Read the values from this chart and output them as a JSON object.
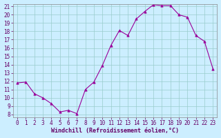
{
  "x": [
    0,
    1,
    2,
    3,
    4,
    5,
    6,
    7,
    8,
    9,
    10,
    11,
    12,
    13,
    14,
    15,
    16,
    17,
    18,
    19,
    20,
    21,
    22,
    23
  ],
  "y": [
    11.8,
    11.9,
    10.5,
    10.0,
    9.3,
    8.3,
    8.5,
    8.1,
    11.0,
    11.9,
    13.9,
    16.3,
    18.1,
    17.5,
    19.5,
    20.4,
    21.2,
    21.1,
    21.1,
    20.0,
    19.7,
    17.5,
    16.8,
    13.5
  ],
  "line_color": "#990099",
  "marker": "^",
  "marker_size": 2.5,
  "bg_color": "#cceeff",
  "grid_color": "#99cccc",
  "xlabel": "Windchill (Refroidissement éolien,°C)",
  "text_color": "#660066",
  "ylim": [
    8,
    21
  ],
  "xlim": [
    -0.5,
    23.5
  ],
  "yticks": [
    8,
    9,
    10,
    11,
    12,
    13,
    14,
    15,
    16,
    17,
    18,
    19,
    20,
    21
  ],
  "xticks": [
    0,
    1,
    2,
    3,
    4,
    5,
    6,
    7,
    8,
    9,
    10,
    11,
    12,
    13,
    14,
    15,
    16,
    17,
    18,
    19,
    20,
    21,
    22,
    23
  ],
  "tick_fontsize": 5.5,
  "label_fontsize": 6.0,
  "spine_color": "#888888"
}
